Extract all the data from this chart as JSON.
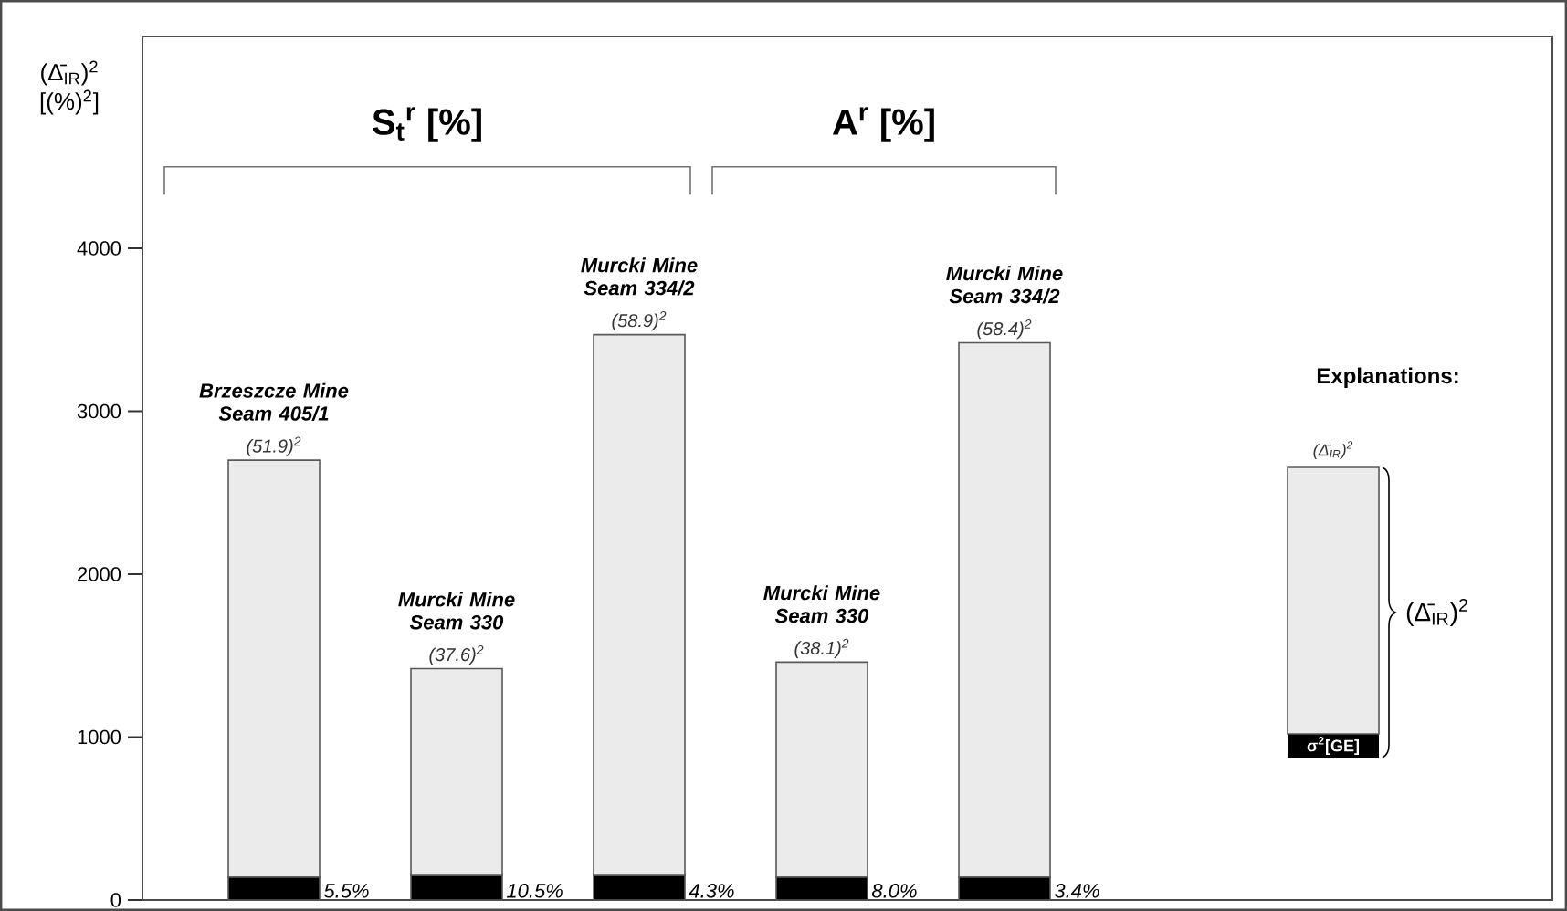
{
  "chart_data": {
    "type": "bar",
    "stacked": true,
    "categories": [
      "Brzeszcze Mine Seam 405/1",
      "Murcki Mine Seam 330",
      "Murcki Mine Seam 334/2",
      "Murcki Mine Seam 330",
      "Murcki Mine Seam 334/2"
    ],
    "ylabel": "(Δ̄$_{IR}$)$^{2}$ [(%)$^{2}$]",
    "ylim": [
      0,
      5300
    ],
    "yticks": [
      0,
      1000,
      2000,
      3000,
      4000
    ],
    "series": [
      {
        "name": "σ$^{2}$[GE]",
        "color": "#000000",
        "values": [
          140,
          150,
          150,
          140,
          140
        ]
      },
      {
        "name": "(Δ̄$_{IR}$)$^{2}$",
        "color": "#ebebeb",
        "values": [
          2560,
          1270,
          3320,
          1320,
          3280
        ],
        "value_labels": [
          "(51.9)$^{2}$",
          "(37.6)$^{2}$",
          "(58.9)$^{2}$",
          "(38.1)$^{2}$",
          "(58.4)$^{2}$"
        ]
      }
    ],
    "legend": "right",
    "legend_title": "Explanations:",
    "annotations": [
      "S$_{t}$$^{r}$ [%]",
      "A$^{r}$ [%]",
      "(Δ̄$_{IR}$)$^{2}$",
      "5.5%",
      "10.5%",
      "4.3%",
      "8.0%",
      "3.4%"
    ]
  }
}
